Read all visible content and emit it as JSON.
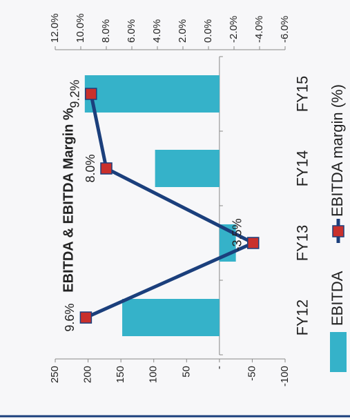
{
  "chart_data": {
    "type": "bar",
    "title": "EBITDA & EBITDA Margin %",
    "categories": [
      "FY12",
      "FY13",
      "FY14",
      "FY15"
    ],
    "series": [
      {
        "name": "EBITDA",
        "type": "bar",
        "color": "#35b2c9",
        "values": [
          148,
          -25,
          98,
          205
        ]
      },
      {
        "name": "EBITDA margin (%)",
        "type": "line",
        "axis": "y2",
        "color": "#1b3f7c",
        "marker_color": "#c9302c",
        "values": [
          9.6,
          -3.5,
          8.0,
          9.2
        ],
        "value_labels": [
          "9.6%",
          "-3.5%",
          "8.0%",
          "9.2%"
        ]
      }
    ],
    "ylim": [
      -100,
      250
    ],
    "yticks": [
      -100,
      -50,
      {
        "value": 0,
        "label": "-"
      },
      50,
      100,
      150,
      200,
      250
    ],
    "y2lim": [
      -6,
      12
    ],
    "y2ticks": [
      {
        "value": -6,
        "label": "-6.0%"
      },
      {
        "value": -4,
        "label": "-4.0%"
      },
      {
        "value": -2,
        "label": "-2.0%"
      },
      {
        "value": 0,
        "label": "0.0%"
      },
      {
        "value": 2,
        "label": "2.0%"
      },
      {
        "value": 4,
        "label": "4.0%"
      },
      {
        "value": 6,
        "label": "6.0%"
      },
      {
        "value": 8,
        "label": "8.0%"
      },
      {
        "value": 10,
        "label": "10.0%"
      },
      {
        "value": 12,
        "label": "12.0%"
      }
    ],
    "legend": "bottom"
  }
}
